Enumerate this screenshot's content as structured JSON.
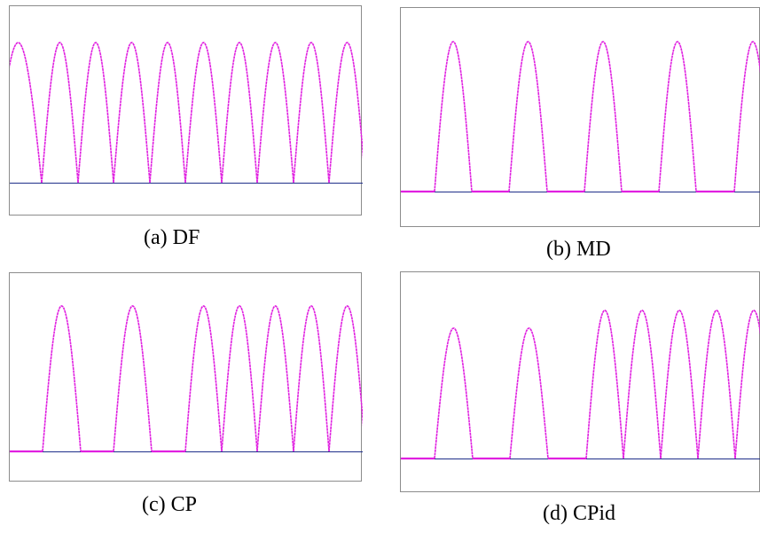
{
  "colors": {
    "signal": "#e020e0",
    "baseline": "#1f2f8a",
    "frame": "#8c8c8c"
  },
  "chart_data": [
    {
      "type": "line",
      "caption": "(a) DF",
      "x_range": [
        0,
        398
      ],
      "y_range": [
        0,
        1.2
      ],
      "baseline": 0,
      "signal": "full-wave rectified sinusoid",
      "pulses": [
        {
          "start": -17,
          "end": 36,
          "peak": 1.0
        },
        {
          "start": 36,
          "end": 77,
          "peak": 1.0
        },
        {
          "start": 77,
          "end": 117,
          "peak": 1.0
        },
        {
          "start": 117,
          "end": 158,
          "peak": 1.0
        },
        {
          "start": 158,
          "end": 198,
          "peak": 1.0
        },
        {
          "start": 198,
          "end": 239,
          "peak": 1.0
        },
        {
          "start": 239,
          "end": 279,
          "peak": 1.0
        },
        {
          "start": 279,
          "end": 320,
          "peak": 1.0
        },
        {
          "start": 320,
          "end": 360,
          "peak": 1.0
        },
        {
          "start": 360,
          "end": 401,
          "peak": 1.0
        }
      ]
    },
    {
      "type": "line",
      "caption": "(b) MD",
      "x_range": [
        0,
        406
      ],
      "y_range": [
        0,
        1.2
      ],
      "baseline": 0,
      "signal": "rectified sinusoid pulses with zero intervals",
      "pulses": [
        {
          "start": 38,
          "end": 80,
          "peak": 1.0
        },
        {
          "start": 122,
          "end": 165,
          "peak": 1.0
        },
        {
          "start": 207,
          "end": 249,
          "peak": 1.0
        },
        {
          "start": 291,
          "end": 333,
          "peak": 1.0
        },
        {
          "start": 376,
          "end": 418,
          "peak": 1.0
        }
      ]
    },
    {
      "type": "line",
      "caption": "(c) CP",
      "x_range": [
        0,
        398
      ],
      "y_range": [
        0,
        1.2
      ],
      "baseline": 0,
      "signal": "rectified sinusoid pulses with zero intervals",
      "pulses": [
        {
          "start": 37,
          "end": 80,
          "peak": 1.0
        },
        {
          "start": 117,
          "end": 160,
          "peak": 1.0
        },
        {
          "start": 198,
          "end": 239,
          "peak": 1.0
        },
        {
          "start": 239,
          "end": 279,
          "peak": 1.0
        },
        {
          "start": 279,
          "end": 320,
          "peak": 1.0
        },
        {
          "start": 320,
          "end": 360,
          "peak": 1.0
        },
        {
          "start": 360,
          "end": 401,
          "peak": 1.0
        }
      ]
    },
    {
      "type": "line",
      "caption": "(d) CPid",
      "x_range": [
        0,
        406
      ],
      "y_range": [
        0,
        1.2
      ],
      "baseline": 0,
      "signal": "rectified sinusoid pulses with zero intervals",
      "pulses": [
        {
          "start": 38,
          "end": 81,
          "peak": 0.88
        },
        {
          "start": 123,
          "end": 166,
          "peak": 0.88
        },
        {
          "start": 209,
          "end": 251,
          "peak": 1.0
        },
        {
          "start": 251,
          "end": 293,
          "peak": 1.0
        },
        {
          "start": 293,
          "end": 335,
          "peak": 1.0
        },
        {
          "start": 335,
          "end": 377,
          "peak": 1.0
        },
        {
          "start": 377,
          "end": 419,
          "peak": 1.0
        }
      ]
    }
  ]
}
